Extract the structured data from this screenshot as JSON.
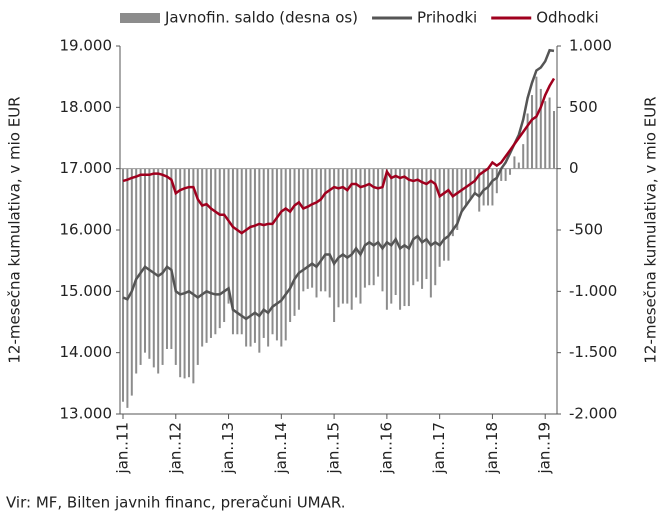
{
  "chart_data": {
    "type": "bar-line",
    "ylabel": "12-mesečna kumulativa, v mio EUR",
    "y2label": "12-mesečna kumulativa, v mio EUR",
    "source": "Vir: MF, Bilten javnih financ, preračuni UMAR.",
    "categories": [
      "jan..11",
      null,
      null,
      null,
      null,
      null,
      null,
      null,
      null,
      null,
      null,
      null,
      "jan..12",
      null,
      null,
      null,
      null,
      null,
      null,
      null,
      null,
      null,
      null,
      null,
      "jan..13",
      null,
      null,
      null,
      null,
      null,
      null,
      null,
      null,
      null,
      null,
      null,
      "jan..14",
      null,
      null,
      null,
      null,
      null,
      null,
      null,
      null,
      null,
      null,
      null,
      "jan..15",
      null,
      null,
      null,
      null,
      null,
      null,
      null,
      null,
      null,
      null,
      null,
      "jan..16",
      null,
      null,
      null,
      null,
      null,
      null,
      null,
      null,
      null,
      null,
      null,
      "jan..17",
      null,
      null,
      null,
      null,
      null,
      null,
      null,
      null,
      null,
      null,
      null,
      "jan..18",
      null,
      null,
      null,
      null,
      null,
      null,
      null,
      null,
      null,
      null,
      null,
      "jan..19",
      null,
      null
    ],
    "series": [
      {
        "name": "Javnofin. saldo (desna os)",
        "kind": "bar",
        "axis": "y2",
        "color": "#8c8c8c",
        "values": [
          -1900,
          -1950,
          -1850,
          -1670,
          -1600,
          -1500,
          -1550,
          -1620,
          -1670,
          -1600,
          -1470,
          -1470,
          -1600,
          -1700,
          -1710,
          -1700,
          -1750,
          -1600,
          -1450,
          -1420,
          -1380,
          -1350,
          -1300,
          -1250,
          -1100,
          -1350,
          -1350,
          -1350,
          -1450,
          -1450,
          -1420,
          -1500,
          -1380,
          -1450,
          -1350,
          -1400,
          -1450,
          -1400,
          -1250,
          -1200,
          -1150,
          -1000,
          -980,
          -970,
          -1050,
          -1000,
          -1000,
          -1050,
          -1250,
          -1130,
          -1100,
          -1100,
          -1150,
          -1050,
          -1100,
          -970,
          -950,
          -950,
          -880,
          -1000,
          -1150,
          -1100,
          -1030,
          -1150,
          -1120,
          -1120,
          -950,
          -920,
          -980,
          -900,
          -1050,
          -950,
          -800,
          -750,
          -750,
          -550,
          -500,
          -350,
          -300,
          -250,
          -200,
          -350,
          -300,
          -300,
          -300,
          -200,
          -100,
          -100,
          -50,
          100,
          50,
          200,
          450,
          600,
          750,
          650,
          550,
          580,
          470
        ]
      },
      {
        "name": "Prihodki",
        "kind": "line",
        "color": "#555555",
        "values": [
          14900,
          14870,
          15000,
          15200,
          15300,
          15400,
          15350,
          15300,
          15250,
          15300,
          15400,
          15350,
          15000,
          14950,
          14970,
          15000,
          14950,
          14900,
          14950,
          15000,
          14970,
          14950,
          14950,
          15000,
          15050,
          14700,
          14650,
          14600,
          14550,
          14600,
          14650,
          14600,
          14700,
          14650,
          14750,
          14800,
          14850,
          14950,
          15050,
          15200,
          15300,
          15350,
          15400,
          15450,
          15400,
          15500,
          15600,
          15600,
          15450,
          15550,
          15600,
          15550,
          15600,
          15700,
          15600,
          15750,
          15800,
          15750,
          15800,
          15700,
          15800,
          15750,
          15850,
          15700,
          15750,
          15700,
          15850,
          15900,
          15800,
          15850,
          15750,
          15800,
          15750,
          15850,
          15900,
          16000,
          16100,
          16300,
          16400,
          16500,
          16600,
          16550,
          16650,
          16700,
          16800,
          16850,
          17000,
          17100,
          17250,
          17400,
          17550,
          17800,
          18150,
          18400,
          18600,
          18650,
          18750,
          18930,
          18920
        ]
      },
      {
        "name": "Odhodki",
        "kind": "line",
        "color": "#a0001e",
        "values": [
          16800,
          16820,
          16850,
          16870,
          16900,
          16900,
          16900,
          16920,
          16920,
          16900,
          16870,
          16820,
          16600,
          16650,
          16680,
          16700,
          16700,
          16500,
          16400,
          16420,
          16350,
          16300,
          16250,
          16250,
          16150,
          16050,
          16000,
          15950,
          16000,
          16050,
          16070,
          16100,
          16080,
          16100,
          16100,
          16200,
          16300,
          16350,
          16300,
          16400,
          16450,
          16350,
          16380,
          16420,
          16450,
          16500,
          16600,
          16650,
          16700,
          16680,
          16700,
          16650,
          16750,
          16750,
          16700,
          16720,
          16750,
          16700,
          16680,
          16700,
          16950,
          16850,
          16880,
          16850,
          16870,
          16820,
          16800,
          16820,
          16780,
          16750,
          16800,
          16750,
          16550,
          16600,
          16650,
          16550,
          16600,
          16650,
          16700,
          16750,
          16800,
          16900,
          16950,
          17000,
          17100,
          17050,
          17100,
          17200,
          17300,
          17400,
          17500,
          17600,
          17700,
          17800,
          17850,
          18000,
          18200,
          18350,
          18470
        ]
      }
    ],
    "ylim": [
      13000,
      19000
    ],
    "yticks": [
      {
        "value": 13000,
        "label": "13.000"
      },
      {
        "value": 14000,
        "label": "14.000"
      },
      {
        "value": 15000,
        "label": "15.000"
      },
      {
        "value": 16000,
        "label": "16.000"
      },
      {
        "value": 17000,
        "label": "17.000"
      },
      {
        "value": 18000,
        "label": "18.000"
      },
      {
        "value": 19000,
        "label": "19.000"
      }
    ],
    "y2lim": [
      -2000,
      1000
    ],
    "y2ticks": [
      {
        "value": -2000,
        "label": "-2.000"
      },
      {
        "value": -1500,
        "label": "-1.500"
      },
      {
        "value": -1000,
        "label": "-1.000"
      },
      -500,
      0,
      500,
      {
        "value": 1000,
        "label": "1.000"
      }
    ],
    "legend": "top"
  }
}
